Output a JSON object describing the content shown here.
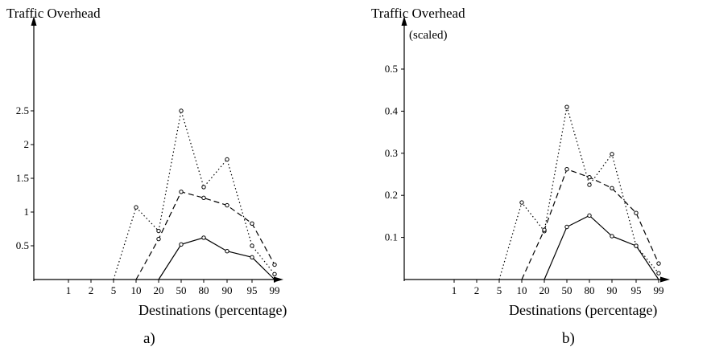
{
  "chart_data": [
    {
      "type": "line",
      "panel_label": "a)",
      "ylabel": "Traffic Overhead",
      "ylabel_sub": "",
      "xlabel": "Destinations (percentage)",
      "categories": [
        "1",
        "2",
        "5",
        "10",
        "20",
        "50",
        "80",
        "90",
        "95",
        "99"
      ],
      "y_ticks": [
        "0.5",
        "1",
        "1.5",
        "2",
        "2.5"
      ],
      "ylim": [
        0,
        3
      ],
      "grid": false,
      "series": [
        {
          "style": "dotted",
          "values": [
            null,
            null,
            0,
            1.07,
            0.72,
            2.5,
            1.37,
            1.78,
            0.5,
            0.08
          ]
        },
        {
          "style": "dashed",
          "values": [
            null,
            null,
            null,
            0,
            0.6,
            1.3,
            1.21,
            1.1,
            0.83,
            0.22
          ]
        },
        {
          "style": "solid",
          "values": [
            null,
            null,
            null,
            null,
            0,
            0.52,
            0.62,
            0.42,
            0.33,
            0
          ]
        }
      ]
    },
    {
      "type": "line",
      "panel_label": "b)",
      "ylabel": "Traffic Overhead",
      "ylabel_sub": "(scaled)",
      "xlabel": "Destinations (percentage)",
      "categories": [
        "1",
        "2",
        "5",
        "10",
        "20",
        "50",
        "80",
        "90",
        "95",
        "99"
      ],
      "y_ticks": [
        "0.1",
        "0.2",
        "0.3",
        "0.4",
        "0.5"
      ],
      "ylim": [
        0,
        0.6
      ],
      "grid": false,
      "series": [
        {
          "style": "dotted",
          "values": [
            null,
            null,
            0,
            0.183,
            0.115,
            0.41,
            0.225,
            0.298,
            0.08,
            0.015
          ]
        },
        {
          "style": "dashed",
          "values": [
            null,
            null,
            null,
            0,
            0.118,
            0.262,
            0.243,
            0.217,
            0.158,
            0.038
          ]
        },
        {
          "style": "solid",
          "values": [
            null,
            null,
            null,
            null,
            0,
            0.125,
            0.152,
            0.103,
            0.08,
            0
          ]
        }
      ]
    }
  ]
}
